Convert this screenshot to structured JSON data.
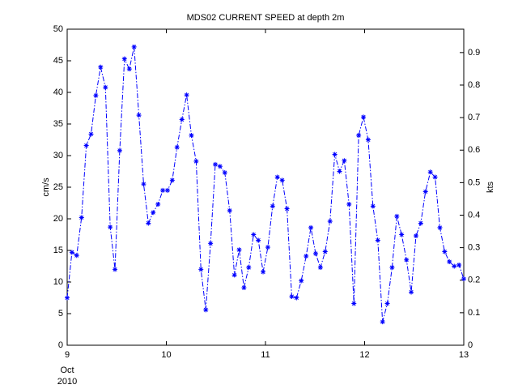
{
  "chart_data": {
    "type": "line",
    "title": "MDS02 CURRENT SPEED at depth 2m",
    "ylabel": "cm/s",
    "y2label": "kts",
    "x_month": "Oct",
    "x_year": "2010",
    "x": [
      9.0,
      9.048,
      9.096,
      9.145,
      9.193,
      9.241,
      9.289,
      9.337,
      9.386,
      9.434,
      9.482,
      9.53,
      9.578,
      9.627,
      9.675,
      9.723,
      9.771,
      9.819,
      9.867,
      9.916,
      9.964,
      10.012,
      10.06,
      10.108,
      10.157,
      10.205,
      10.253,
      10.301,
      10.349,
      10.398,
      10.446,
      10.494,
      10.542,
      10.59,
      10.639,
      10.687,
      10.735,
      10.783,
      10.831,
      10.88,
      10.928,
      10.976,
      11.024,
      11.072,
      11.12,
      11.169,
      11.217,
      11.265,
      11.313,
      11.361,
      11.41,
      11.458,
      11.506,
      11.554,
      11.602,
      11.651,
      11.699,
      11.747,
      11.795,
      11.843,
      11.892,
      11.94,
      11.988,
      12.036,
      12.084,
      12.133,
      12.181,
      12.229,
      12.277,
      12.325,
      12.373,
      12.422,
      12.47,
      12.518,
      12.566,
      12.614,
      12.663,
      12.711,
      12.759,
      12.807,
      12.855,
      12.904,
      12.952,
      13.0
    ],
    "series": [
      {
        "color": "#0000ff",
        "values": [
          7.5,
          14.7,
          14.2,
          20.2,
          31.6,
          33.4,
          39.5,
          44,
          40.8,
          18.7,
          12,
          30.8,
          45.3,
          43.7,
          47.2,
          36.4,
          25.5,
          19.3,
          21,
          22.3,
          24.5,
          24.5,
          26.1,
          31.3,
          35.7,
          39.6,
          33.2,
          29.1,
          12,
          5.6,
          16.1,
          28.6,
          28.3,
          27.3,
          21.3,
          11.1,
          15.1,
          9.1,
          12.3,
          17.5,
          16.6,
          11.6,
          15.5,
          22,
          26.6,
          26.1,
          21.6,
          7.7,
          7.5,
          10.2,
          14.1,
          18.6,
          14.5,
          12.3,
          14.8,
          19.6,
          30.2,
          27.5,
          29.2,
          22.3,
          6.6,
          33.2,
          36.1,
          32.5,
          22,
          16.6,
          3.7,
          6.6,
          12.3,
          20.4,
          17.5,
          13.5,
          8.4,
          17.3,
          19.3,
          24.3,
          27.4,
          26.6,
          18.6,
          14.8,
          13.2,
          12.5,
          12.7,
          10.5
        ]
      }
    ],
    "xlim": [
      9,
      13
    ],
    "xticks": [
      9,
      10,
      11,
      12,
      13
    ],
    "ylim": [
      0,
      50
    ],
    "yticks": [
      0,
      5,
      10,
      15,
      20,
      25,
      30,
      35,
      40,
      45,
      50
    ],
    "y2lim": [
      0,
      0.9719
    ],
    "y2ticks": [
      0,
      0.1,
      0.2,
      0.3,
      0.4,
      0.5,
      0.6,
      0.7,
      0.8,
      0.9
    ]
  }
}
